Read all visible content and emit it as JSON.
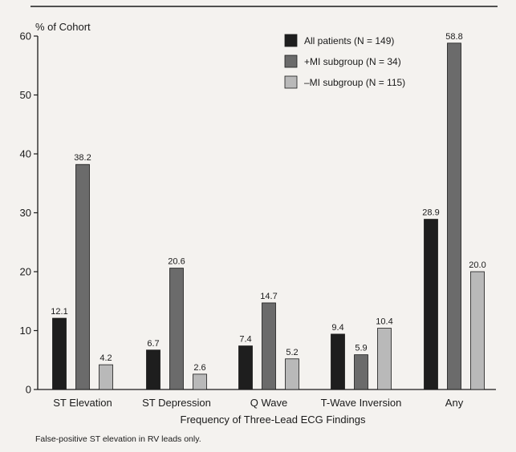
{
  "chart_data": {
    "type": "bar",
    "ylabel": "% of Cohort",
    "xlabel": "Frequency of Three-Lead ECG Findings",
    "footnote": "False-positive ST elevation in RV leads only.",
    "ylim": [
      0,
      60
    ],
    "yticks": [
      "0",
      "10",
      "20",
      "30",
      "40",
      "50",
      "60"
    ],
    "categories": [
      "ST Elevation",
      "ST Depression",
      "Q Wave",
      "T-Wave Inversion",
      "Any"
    ],
    "series": [
      {
        "name": "All patients (N = 149)",
        "color": "#1e1e1e",
        "values": [
          12.1,
          6.7,
          7.4,
          9.4,
          28.9
        ],
        "labels": [
          "12.1",
          "6.7",
          "7.4",
          "9.4",
          "28.9"
        ]
      },
      {
        "name": "+MI subgroup (N = 34)",
        "color": "#6b6b6b",
        "values": [
          38.2,
          20.6,
          14.7,
          5.9,
          58.8
        ],
        "labels": [
          "38.2",
          "20.6",
          "14.7",
          "5.9",
          "58.8"
        ]
      },
      {
        "name": "–MI subgroup (N = 115)",
        "color": "#b9b9b9",
        "values": [
          4.2,
          2.6,
          5.2,
          10.4,
          20.0
        ],
        "labels": [
          "4.2",
          "2.6",
          "5.2",
          "10.4",
          "20.0"
        ]
      }
    ],
    "legend_position": "top-right",
    "grid": false
  }
}
